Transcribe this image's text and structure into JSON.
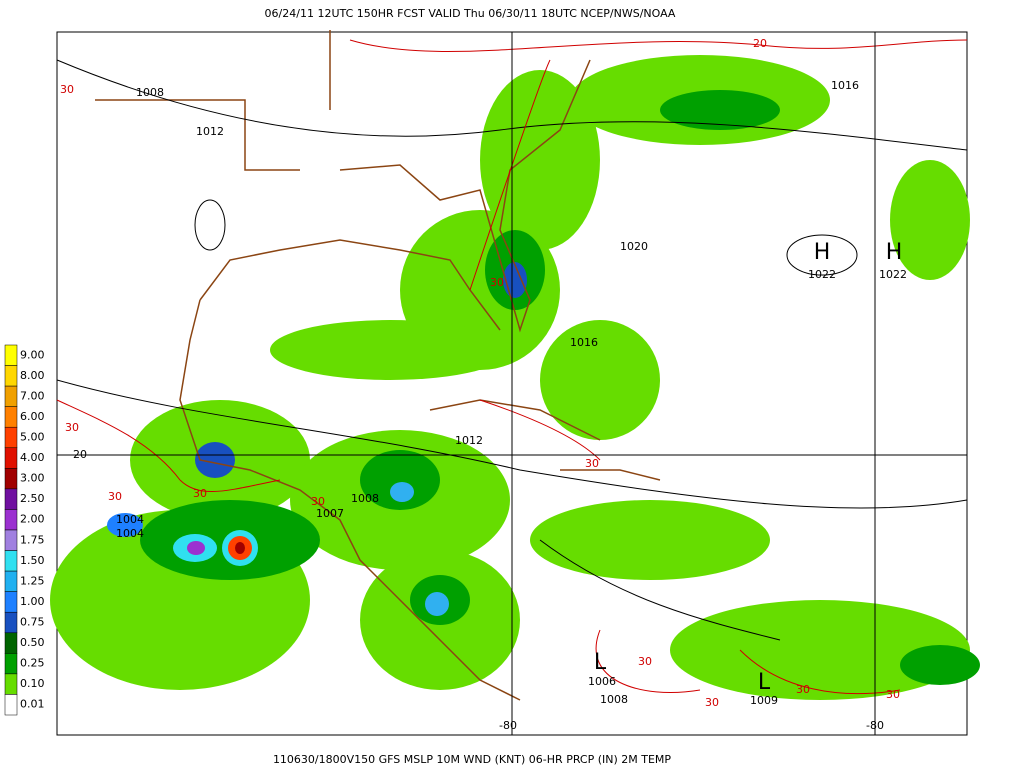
{
  "header": {
    "title": "06/24/11 12UTC  150HR  FCST VALID Thu 06/30/11 18UTC  NCEP/NWS/NOAA"
  },
  "footer": {
    "caption": "110630/1800V150 GFS MSLP 10M WND (KNT) 06-HR PRCP (IN) 2M TEMP"
  },
  "colorbar": {
    "labels": [
      "9.00",
      "8.00",
      "7.00",
      "6.00",
      "5.00",
      "4.00",
      "3.00",
      "2.50",
      "2.00",
      "1.75",
      "1.50",
      "1.25",
      "1.00",
      "0.75",
      "0.50",
      "0.25",
      "0.10",
      "0.01"
    ],
    "colors": [
      "#ffff00",
      "#ffd700",
      "#f0a000",
      "#ff8000",
      "#ff4000",
      "#e01000",
      "#a00000",
      "#7010a0",
      "#9b30d0",
      "#a080e0",
      "#30e0f0",
      "#20b0f0",
      "#1e80ff",
      "#1850c0",
      "#006400",
      "#00a000",
      "#66dd00",
      "#ffffff"
    ]
  },
  "map": {
    "labels": [
      "1008",
      "1012",
      "1016",
      "20",
      "30",
      "1020",
      "H",
      "1022",
      "H",
      "1022",
      "1016",
      "30",
      "1012",
      "30",
      "20",
      "30",
      "30",
      "30",
      "1004",
      "1004",
      "30",
      "1008",
      "1007",
      "L",
      "1006",
      "1008",
      "30",
      "L",
      "1009",
      "30",
      "30",
      "30",
      "-80",
      "-80"
    ]
  }
}
